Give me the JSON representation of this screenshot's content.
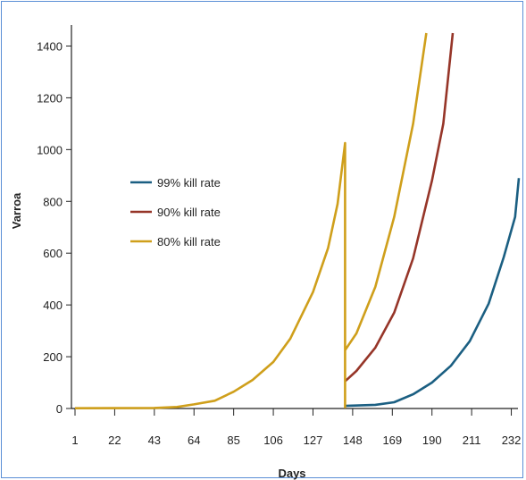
{
  "chart_data": {
    "type": "line",
    "title": "",
    "xlabel": "Days",
    "ylabel": "Varroa",
    "xlim": [
      1,
      236
    ],
    "ylim": [
      0,
      1450
    ],
    "grid": false,
    "legend_position": "left-middle",
    "x_ticks": [
      1,
      22,
      43,
      64,
      85,
      106,
      127,
      148,
      169,
      190,
      211,
      232
    ],
    "y_ticks": [
      0,
      200,
      400,
      600,
      800,
      1000,
      1200,
      1400
    ],
    "series": [
      {
        "name": "99% kill rate",
        "color": "#1b5f82",
        "points": [
          [
            144,
            10
          ],
          [
            160,
            14
          ],
          [
            170,
            24
          ],
          [
            180,
            55
          ],
          [
            190,
            100
          ],
          [
            200,
            165
          ],
          [
            210,
            260
          ],
          [
            220,
            405
          ],
          [
            228,
            585
          ],
          [
            234,
            740
          ],
          [
            236,
            890
          ]
        ]
      },
      {
        "name": "90% kill rate",
        "color": "#963528",
        "points": [
          [
            144,
            105
          ],
          [
            150,
            145
          ],
          [
            160,
            235
          ],
          [
            170,
            370
          ],
          [
            180,
            580
          ],
          [
            190,
            880
          ],
          [
            196,
            1100
          ],
          [
            201,
            1450
          ]
        ]
      },
      {
        "name": "80% kill rate",
        "color": "#cf9f1b",
        "points": [
          [
            1,
            1
          ],
          [
            43,
            2
          ],
          [
            55,
            6
          ],
          [
            64,
            16
          ],
          [
            75,
            30
          ],
          [
            85,
            65
          ],
          [
            95,
            110
          ],
          [
            106,
            180
          ],
          [
            115,
            270
          ],
          [
            127,
            450
          ],
          [
            135,
            620
          ],
          [
            140,
            790
          ],
          [
            144,
            1025
          ],
          [
            144,
            5
          ],
          [
            144,
            225
          ],
          [
            150,
            290
          ],
          [
            160,
            470
          ],
          [
            170,
            740
          ],
          [
            180,
            1100
          ],
          [
            187,
            1450
          ]
        ]
      }
    ]
  }
}
